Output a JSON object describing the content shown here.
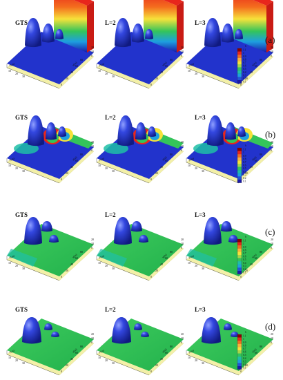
{
  "figure": {
    "panel_titles": [
      "GTS",
      "L=2",
      "L=3"
    ],
    "rows": [
      {
        "label": "(a)",
        "panels": [
          {
            "title": "GTS",
            "y_ticks": [
              "10",
              "20",
              "30"
            ],
            "x_ticks": [
              "0",
              "20",
              "40",
              "60",
              "80"
            ],
            "side_ticks": [
              "20",
              "10",
              "0"
            ],
            "x_label": "x(m)",
            "y_label": "y(m)"
          },
          {
            "title": "L=2",
            "y_ticks": [
              "10",
              "20",
              "30"
            ],
            "x_ticks": [
              "0",
              "20",
              "40",
              "60",
              "80"
            ],
            "side_ticks": [
              "20",
              "10",
              "0"
            ],
            "x_label": "x(m)",
            "y_label": "y(m)"
          },
          {
            "title": "L=3",
            "y_ticks": [
              "10",
              "20",
              "30"
            ],
            "x_ticks": [
              "0",
              "20",
              "40",
              "60",
              "80"
            ],
            "side_ticks": [
              "20",
              "10",
              "0"
            ],
            "x_label": "x(m)",
            "y_label": "y(m)"
          }
        ]
      },
      {
        "label": "(b)",
        "panels": [
          {
            "title": "GTS",
            "y_ticks": [
              "10",
              "20",
              "30"
            ],
            "x_ticks": [
              "0",
              "20",
              "40",
              "60",
              "80"
            ],
            "side_ticks": [
              "20",
              "10",
              "0"
            ],
            "x_label": "x(m)",
            "y_label": "y(m)"
          },
          {
            "title": "L=2",
            "y_ticks": [
              "10",
              "20",
              "30"
            ],
            "x_ticks": [
              "0",
              "20",
              "40",
              "60",
              "80"
            ],
            "side_ticks": [
              "20",
              "10",
              "0"
            ],
            "x_label": "x(m)",
            "y_label": "y(m)"
          },
          {
            "title": "L=3",
            "y_ticks": [
              "10",
              "20",
              "30"
            ],
            "x_ticks": [
              "0",
              "20",
              "40",
              "60",
              "80"
            ],
            "side_ticks": [
              "20",
              "10",
              "0"
            ],
            "x_label": "x(m)",
            "y_label": "y(m)"
          }
        ]
      },
      {
        "label": "(c)",
        "panels": [
          {
            "title": "GTS",
            "y_ticks": [
              "10",
              "20",
              "30"
            ],
            "x_ticks": [
              "0",
              "20",
              "40",
              "60",
              "80"
            ],
            "side_ticks": [
              "20",
              "10",
              "0"
            ],
            "x_label": "x(m)",
            "y_label": "y(m)"
          },
          {
            "title": "L=2",
            "y_ticks": [
              "10",
              "20",
              "30"
            ],
            "x_ticks": [
              "0",
              "20",
              "40",
              "60",
              "80"
            ],
            "side_ticks": [
              "20",
              "10",
              "0"
            ],
            "x_label": "x(m)",
            "y_label": "y(m)"
          },
          {
            "title": "L=3",
            "y_ticks": [
              "10",
              "20",
              "30"
            ],
            "x_ticks": [
              "0",
              "20",
              "40",
              "60",
              "80"
            ],
            "side_ticks": [
              "20",
              "10",
              "0"
            ],
            "x_label": "x(m)",
            "y_label": "y(m)"
          }
        ]
      },
      {
        "label": "(d)",
        "panels": [
          {
            "title": "GTS",
            "y_ticks": [
              "10",
              "20",
              "30"
            ],
            "x_ticks": [
              "0",
              "20",
              "40",
              "60",
              "80"
            ],
            "side_ticks": [
              "20",
              "10",
              "0"
            ],
            "x_label": "x(m)",
            "y_label": "y(m)"
          },
          {
            "title": "L=2",
            "y_ticks": [
              "10",
              "20",
              "30"
            ],
            "x_ticks": [
              "0",
              "20",
              "40",
              "60",
              "80"
            ],
            "side_ticks": [
              "20",
              "10",
              "0"
            ],
            "x_label": "x(m)",
            "y_label": "y(m)"
          },
          {
            "title": "L=3",
            "y_ticks": [
              "10",
              "20",
              "30"
            ],
            "x_ticks": [
              "0",
              "20",
              "40",
              "60",
              "80"
            ],
            "side_ticks": [
              "20",
              "10",
              "0"
            ],
            "x_label": "x(m)",
            "y_label": "y(m)"
          }
        ]
      }
    ],
    "colorbar": {
      "title": "h",
      "ticks": [
        "1.1",
        "1",
        "0.9",
        "0.8",
        "0.7",
        "0.6",
        "0.5",
        "0.4",
        "0.3",
        "0.2",
        "0.1"
      ],
      "colors": [
        "#8b0000",
        "#e8261c",
        "#f46d1e",
        "#fbb13a",
        "#f6e23a",
        "#a6d64a",
        "#34c45a",
        "#1fbfa6",
        "#1e9fe0",
        "#2454d8",
        "#1a1aa8"
      ]
    },
    "surface_colors": {
      "dry_bed": "#2233cc",
      "hump": "#2d3fd6",
      "wet_high": "#e8261c",
      "wet_mid": "#34c45a",
      "substrate": "#f3f0a8"
    }
  }
}
